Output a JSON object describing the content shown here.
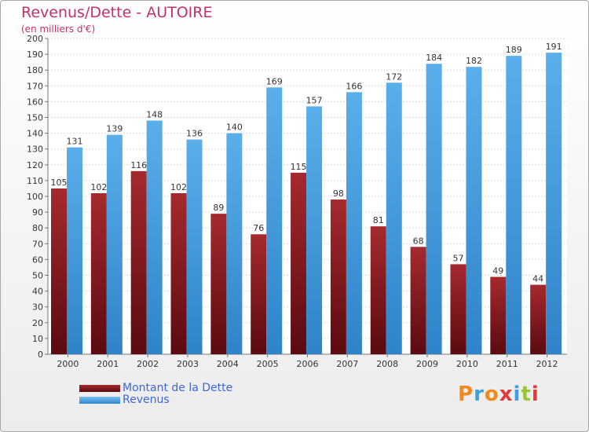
{
  "title": "Revenus/Dette - AUTOIRE",
  "subtitle": "(en milliers d'€)",
  "logo": {
    "text": "Proxiti"
  },
  "chart_data": {
    "type": "bar",
    "title": "Revenus/Dette - AUTOIRE",
    "ylabel": "(en milliers d'€)",
    "xlabel": "",
    "ylim": [
      0,
      200
    ],
    "yticks": [
      0,
      10,
      20,
      30,
      40,
      50,
      60,
      70,
      80,
      90,
      100,
      110,
      120,
      130,
      140,
      150,
      160,
      170,
      180,
      190,
      200
    ],
    "grid": true,
    "legend_position": "bottom-left",
    "categories": [
      "2000",
      "2001",
      "2002",
      "2003",
      "2004",
      "2005",
      "2006",
      "2007",
      "2008",
      "2009",
      "2010",
      "2011",
      "2012"
    ],
    "series": [
      {
        "name": "Montant de la Dette",
        "color": "#7a1a1f",
        "values": [
          105,
          102,
          116,
          102,
          89,
          76,
          115,
          98,
          81,
          68,
          57,
          49,
          44
        ]
      },
      {
        "name": "Revenus",
        "color": "#4a9fe0",
        "values": [
          131,
          139,
          148,
          136,
          140,
          169,
          157,
          166,
          172,
          184,
          182,
          189,
          191
        ]
      }
    ]
  }
}
